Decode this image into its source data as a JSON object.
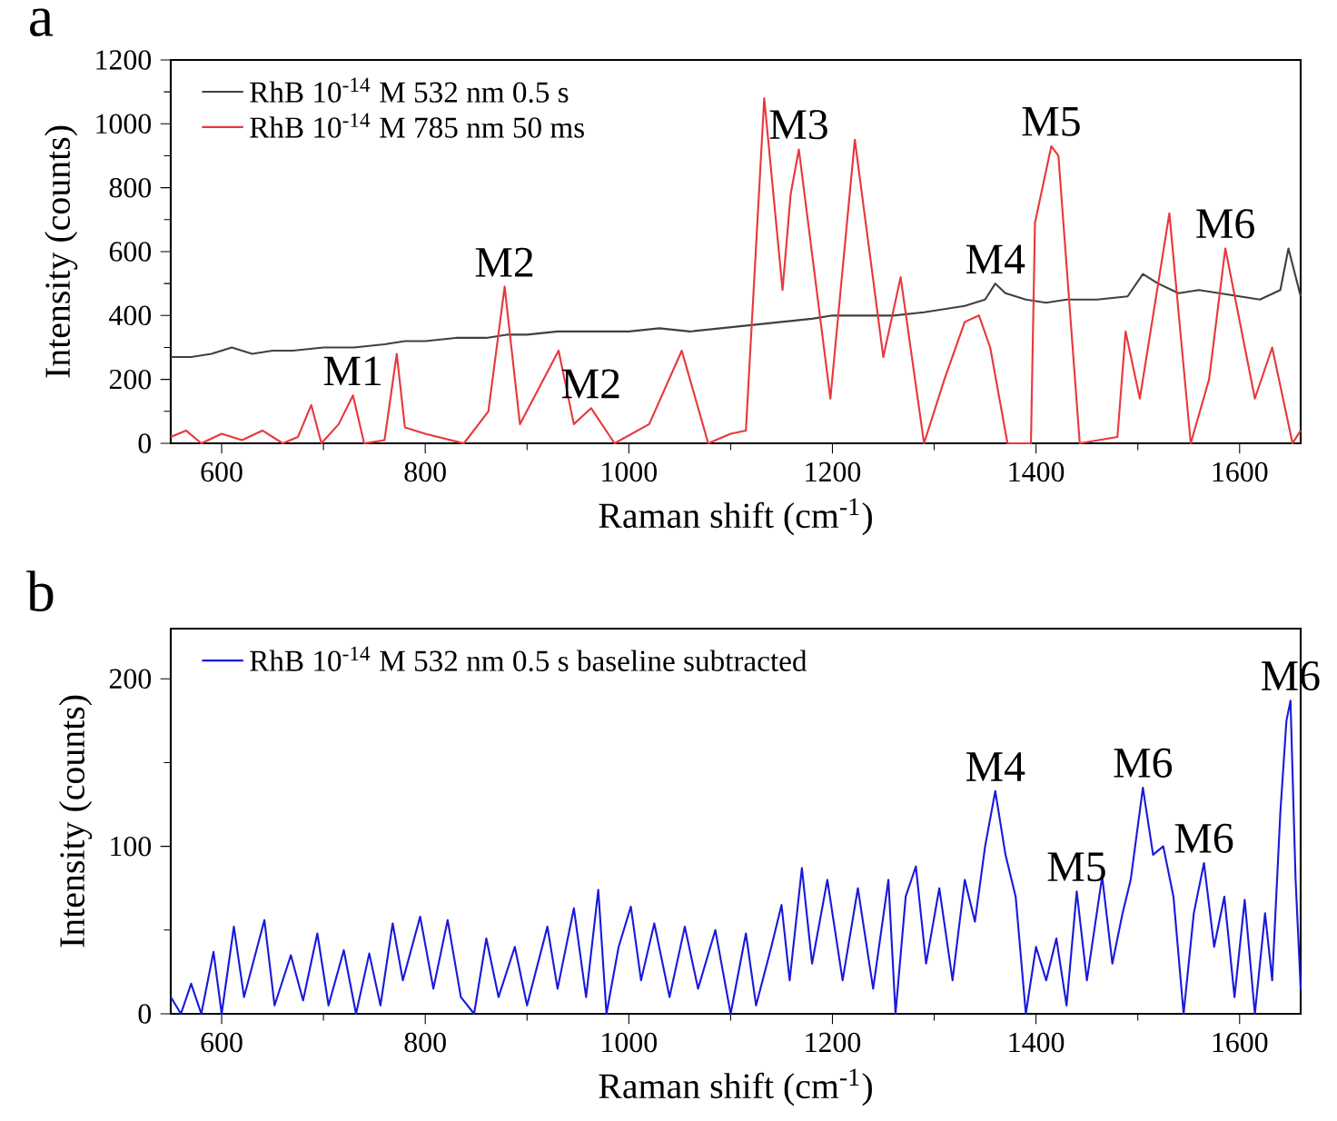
{
  "chart_data": [
    {
      "type": "line",
      "title": "a",
      "xlabel": "Raman shift (cm$^{-1}$)",
      "ylabel": "Intensity (counts)",
      "xlim": [
        550,
        1660
      ],
      "ylim": [
        0,
        1200
      ],
      "xticks": [
        600,
        800,
        1000,
        1200,
        1400,
        1600
      ],
      "yticks": [
        0,
        200,
        400,
        600,
        800,
        1000,
        1200
      ],
      "legend": "top left",
      "series": [
        {
          "name": "RhB 10$^{-14}$ M 532 nm 0.5 s",
          "color": "#404040",
          "x": [
            550,
            570,
            590,
            610,
            630,
            650,
            670,
            700,
            730,
            760,
            780,
            800,
            830,
            860,
            880,
            900,
            930,
            960,
            1000,
            1030,
            1060,
            1090,
            1120,
            1150,
            1180,
            1200,
            1230,
            1260,
            1290,
            1310,
            1330,
            1350,
            1360,
            1370,
            1390,
            1410,
            1430,
            1460,
            1490,
            1505,
            1520,
            1540,
            1560,
            1580,
            1600,
            1620,
            1640,
            1648,
            1660
          ],
          "values": [
            270,
            270,
            280,
            300,
            280,
            290,
            290,
            300,
            300,
            310,
            320,
            320,
            330,
            330,
            340,
            340,
            350,
            350,
            350,
            360,
            350,
            360,
            370,
            380,
            390,
            400,
            400,
            400,
            410,
            420,
            430,
            450,
            500,
            470,
            450,
            440,
            450,
            450,
            460,
            530,
            500,
            470,
            480,
            470,
            460,
            450,
            480,
            610,
            460
          ]
        },
        {
          "name": "RhB 10$^{-14}$ M 785 nm 50 ms",
          "color": "#e8383d",
          "x": [
            550,
            565,
            580,
            600,
            620,
            640,
            660,
            675,
            688,
            698,
            715,
            729,
            740,
            760,
            772,
            780,
            800,
            838,
            862,
            878,
            893,
            931,
            946,
            963,
            986,
            1020,
            1052,
            1078,
            1100,
            1115,
            1133,
            1151,
            1159,
            1167,
            1198,
            1222,
            1250,
            1267,
            1290,
            1310,
            1330,
            1344,
            1355,
            1372,
            1395,
            1399,
            1415,
            1422,
            1443,
            1480,
            1488,
            1502,
            1531,
            1552,
            1570,
            1586,
            1615,
            1632,
            1652,
            1660
          ],
          "values": [
            20,
            40,
            0,
            30,
            10,
            40,
            0,
            20,
            120,
            0,
            60,
            150,
            0,
            10,
            280,
            50,
            30,
            0,
            100,
            490,
            60,
            290,
            60,
            110,
            0,
            60,
            290,
            0,
            30,
            40,
            1080,
            480,
            780,
            920,
            140,
            950,
            270,
            520,
            0,
            200,
            380,
            400,
            300,
            0,
            0,
            690,
            930,
            900,
            0,
            20,
            350,
            140,
            720,
            0,
            200,
            610,
            140,
            300,
            0,
            40
          ]
        }
      ],
      "annotations": [
        {
          "text": "M1",
          "x": 729,
          "y": 150
        },
        {
          "text": "M2",
          "x": 878,
          "y": 490
        },
        {
          "text": "M2",
          "x": 963,
          "y": 110
        },
        {
          "text": "M3",
          "x": 1167,
          "y": 920
        },
        {
          "text": "M4",
          "x": 1360,
          "y": 500
        },
        {
          "text": "M5",
          "x": 1415,
          "y": 930
        },
        {
          "text": "M6",
          "x": 1586,
          "y": 610
        }
      ]
    },
    {
      "type": "line",
      "title": "b",
      "xlabel": "Raman shift (cm$^{-1}$)",
      "ylabel": "Intensity (counts)",
      "xlim": [
        550,
        1660
      ],
      "ylim": [
        0,
        230
      ],
      "xticks": [
        600,
        800,
        1000,
        1200,
        1400,
        1600
      ],
      "yticks": [
        0,
        100,
        200
      ],
      "legend": "top left",
      "series": [
        {
          "name": "RhB 10$^{-14}$ M 532 nm 0.5 s baseline subtracted",
          "color": "#1a1adc",
          "x": [
            550,
            560,
            570,
            580,
            592,
            600,
            612,
            622,
            642,
            652,
            668,
            680,
            694,
            705,
            720,
            732,
            745,
            756,
            768,
            778,
            795,
            808,
            822,
            835,
            848,
            860,
            872,
            888,
            900,
            920,
            930,
            946,
            958,
            970,
            978,
            990,
            1002,
            1012,
            1025,
            1040,
            1055,
            1068,
            1085,
            1100,
            1115,
            1125,
            1140,
            1150,
            1158,
            1170,
            1180,
            1195,
            1210,
            1225,
            1240,
            1255,
            1262,
            1272,
            1282,
            1292,
            1305,
            1318,
            1330,
            1340,
            1350,
            1360,
            1370,
            1380,
            1390,
            1400,
            1410,
            1420,
            1430,
            1440,
            1450,
            1465,
            1475,
            1485,
            1493,
            1505,
            1515,
            1525,
            1535,
            1545,
            1555,
            1565,
            1575,
            1585,
            1595,
            1605,
            1615,
            1625,
            1632,
            1640,
            1646,
            1650,
            1655,
            1660
          ],
          "values": [
            10,
            0,
            18,
            0,
            37,
            0,
            52,
            10,
            56,
            5,
            35,
            8,
            48,
            5,
            38,
            0,
            36,
            5,
            54,
            20,
            58,
            15,
            56,
            10,
            0,
            45,
            10,
            40,
            5,
            52,
            15,
            63,
            10,
            74,
            0,
            40,
            64,
            20,
            54,
            10,
            52,
            15,
            50,
            0,
            48,
            5,
            40,
            65,
            20,
            87,
            30,
            80,
            20,
            75,
            15,
            80,
            0,
            70,
            88,
            30,
            75,
            20,
            80,
            55,
            100,
            133,
            95,
            70,
            0,
            40,
            20,
            45,
            5,
            73,
            20,
            82,
            30,
            60,
            80,
            135,
            95,
            100,
            70,
            0,
            60,
            90,
            40,
            70,
            10,
            68,
            0,
            60,
            20,
            120,
            175,
            187,
            80,
            15
          ]
        }
      ],
      "annotations": [
        {
          "text": "M4",
          "x": 1360,
          "y": 133
        },
        {
          "text": "M5",
          "x": 1440,
          "y": 73
        },
        {
          "text": "M6",
          "x": 1505,
          "y": 135
        },
        {
          "text": "M6",
          "x": 1565,
          "y": 90
        },
        {
          "text": "M6",
          "x": 1650,
          "y": 187
        }
      ]
    }
  ]
}
